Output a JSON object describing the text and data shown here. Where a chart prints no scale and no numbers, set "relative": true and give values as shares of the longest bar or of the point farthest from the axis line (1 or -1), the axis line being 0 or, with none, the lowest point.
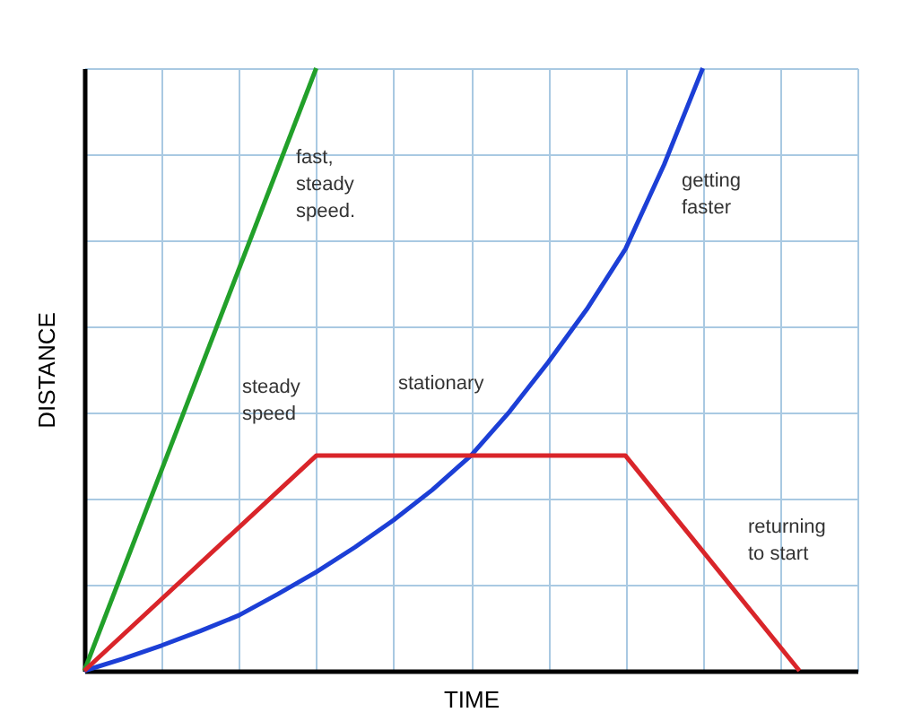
{
  "chart_data": {
    "type": "line",
    "relative": true,
    "xlabel": "TIME",
    "ylabel": "DISTANCE",
    "grid": true,
    "categories": [
      null,
      null,
      null,
      null,
      null,
      null,
      null,
      null,
      null,
      null,
      null,
      null,
      null,
      null,
      null,
      null,
      null,
      null,
      null,
      null,
      null,
      null,
      null,
      null,
      null,
      null,
      null,
      null,
      null,
      null,
      null,
      null,
      null,
      null,
      null,
      null,
      null,
      null,
      null,
      null,
      null
    ],
    "series": [
      {
        "color": "#22a02a",
        "values": [
          0,
          null,
          null,
          null,
          null,
          null,
          null,
          null,
          null,
          null,
          null,
          null,
          1,
          null,
          null,
          null,
          null,
          null,
          null,
          null,
          null,
          null,
          null,
          null,
          null,
          null,
          null,
          null,
          null,
          null,
          null,
          null,
          null,
          null,
          null,
          null,
          null,
          null,
          null,
          null,
          null
        ]
      },
      {
        "color": "#1c3fd6",
        "values": [
          0,
          null,
          0.02,
          null,
          0.042,
          null,
          0.066,
          null,
          0.092,
          null,
          0.127,
          null,
          0.164,
          null,
          0.205,
          null,
          0.25,
          null,
          0.3,
          null,
          0.357,
          null,
          0.43,
          null,
          0.512,
          null,
          0.6,
          null,
          0.7,
          null,
          0.84,
          null,
          1,
          null,
          null,
          null,
          null,
          null,
          null,
          null,
          null
        ]
      },
      {
        "color": "#d9252a",
        "values": [
          0,
          null,
          null,
          null,
          null,
          null,
          null,
          null,
          null,
          null,
          null,
          null,
          0.357,
          null,
          null,
          null,
          null,
          null,
          null,
          null,
          null,
          null,
          null,
          null,
          null,
          null,
          null,
          null,
          0.357,
          null,
          null,
          null,
          null,
          null,
          null,
          null,
          null,
          0,
          null,
          null,
          null
        ]
      }
    ],
    "annotations": [
      "fast, steady speed.",
      "getting faster",
      "steady speed",
      "stationary",
      "returning to start"
    ]
  }
}
